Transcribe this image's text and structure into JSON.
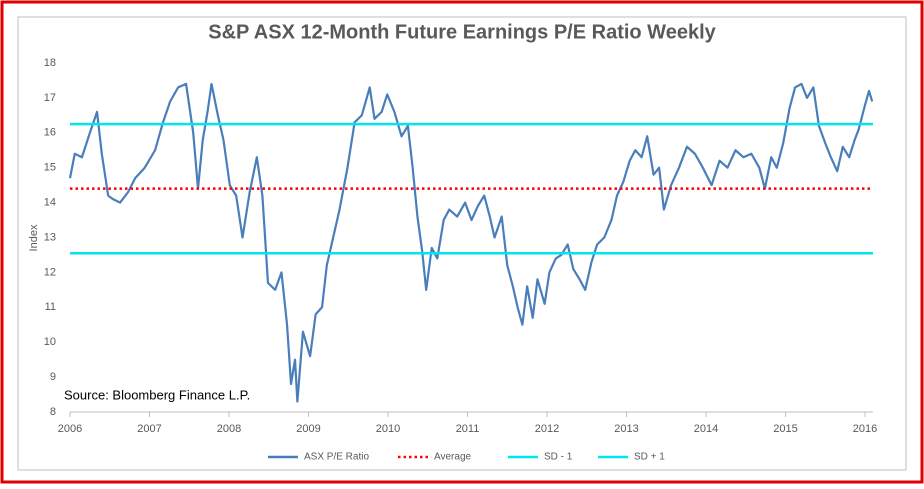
{
  "chart_data": {
    "type": "line",
    "title": "S&P ASX  12-Month Future Earnings P/E Ratio Weekly",
    "y_label": "Index",
    "annotation": "Source: Bloomberg Finance L.P.",
    "x": [
      2006.0,
      2006.06,
      2006.15,
      2006.25,
      2006.34,
      2006.4,
      2006.48,
      2006.54,
      2006.63,
      2006.73,
      2006.82,
      2006.94,
      2007.07,
      2007.17,
      2007.26,
      2007.36,
      2007.46,
      2007.55,
      2007.61,
      2007.67,
      2007.73,
      2007.78,
      2007.86,
      2007.93,
      2008.01,
      2008.09,
      2008.17,
      2008.26,
      2008.35,
      2008.42,
      2008.49,
      2008.58,
      2008.66,
      2008.73,
      2008.78,
      2008.83,
      2008.86,
      2008.93,
      2009.02,
      2009.09,
      2009.17,
      2009.23,
      2009.29,
      2009.39,
      2009.49,
      2009.58,
      2009.67,
      2009.77,
      2009.83,
      2009.92,
      2009.99,
      2010.08,
      2010.17,
      2010.25,
      2010.31,
      2010.37,
      2010.43,
      2010.48,
      2010.55,
      2010.62,
      2010.7,
      2010.77,
      2010.87,
      2010.97,
      2011.05,
      2011.13,
      2011.21,
      2011.28,
      2011.34,
      2011.43,
      2011.5,
      2011.57,
      2011.63,
      2011.69,
      2011.75,
      2011.82,
      2011.88,
      2011.97,
      2012.03,
      2012.11,
      2012.18,
      2012.26,
      2012.33,
      2012.41,
      2012.48,
      2012.56,
      2012.63,
      2012.72,
      2012.81,
      2012.88,
      2012.96,
      2013.04,
      2013.11,
      2013.19,
      2013.26,
      2013.34,
      2013.41,
      2013.47,
      2013.56,
      2013.66,
      2013.76,
      2013.86,
      2013.96,
      2014.07,
      2014.17,
      2014.27,
      2014.37,
      2014.47,
      2014.57,
      2014.67,
      2014.74,
      2014.82,
      2014.89,
      2014.97,
      2015.05,
      2015.12,
      2015.2,
      2015.27,
      2015.35,
      2015.42,
      2015.5,
      2015.57,
      2015.65,
      2015.72,
      2015.8,
      2015.87,
      2015.92,
      2016.0,
      2016.05,
      2016.09
    ],
    "series": [
      {
        "name": "ASX P/E Ratio",
        "color": "#4a7ebb",
        "values": [
          14.7,
          15.4,
          15.3,
          16.0,
          16.6,
          15.4,
          14.2,
          14.1,
          14.0,
          14.3,
          14.7,
          15.0,
          15.5,
          16.3,
          16.9,
          17.3,
          17.4,
          16.0,
          14.4,
          15.8,
          16.6,
          17.4,
          16.5,
          15.8,
          14.5,
          14.2,
          13.0,
          14.3,
          15.3,
          14.2,
          11.7,
          11.5,
          12.0,
          10.5,
          8.8,
          9.5,
          8.3,
          10.3,
          9.6,
          10.8,
          11.0,
          12.2,
          12.8,
          13.8,
          15.0,
          16.3,
          16.5,
          17.3,
          16.4,
          16.6,
          17.1,
          16.6,
          15.9,
          16.2,
          15.0,
          13.6,
          12.6,
          11.5,
          12.7,
          12.4,
          13.5,
          13.8,
          13.6,
          14.0,
          13.5,
          13.9,
          14.2,
          13.6,
          13.0,
          13.6,
          12.2,
          11.6,
          11.0,
          10.5,
          11.6,
          10.7,
          11.8,
          11.1,
          12.0,
          12.4,
          12.5,
          12.8,
          12.1,
          11.8,
          11.5,
          12.3,
          12.8,
          13.0,
          13.5,
          14.2,
          14.6,
          15.2,
          15.5,
          15.3,
          15.9,
          14.8,
          15.0,
          13.8,
          14.5,
          15.0,
          15.6,
          15.4,
          15.0,
          14.5,
          15.2,
          15.0,
          15.5,
          15.3,
          15.4,
          15.0,
          14.4,
          15.3,
          15.0,
          15.7,
          16.7,
          17.3,
          17.4,
          17.0,
          17.3,
          16.2,
          15.7,
          15.3,
          14.9,
          15.6,
          15.3,
          15.8,
          16.1,
          16.8,
          17.2,
          16.9
        ]
      },
      {
        "name": "Average",
        "color": "#ff0000",
        "dash": "dotted",
        "value": 14.4
      },
      {
        "name": "SD - 1",
        "color": "#00e5ee",
        "value": 12.55
      },
      {
        "name": "SD + 1",
        "color": "#00e5ee",
        "value": 16.25
      }
    ],
    "xlim": [
      2006,
      2016.1
    ],
    "xticks": [
      2006,
      2007,
      2008,
      2009,
      2010,
      2011,
      2012,
      2013,
      2014,
      2015,
      2016
    ],
    "ylim": [
      8,
      18
    ],
    "yticks": [
      8,
      9,
      10,
      11,
      12,
      13,
      14,
      15,
      16,
      17,
      18
    ]
  }
}
